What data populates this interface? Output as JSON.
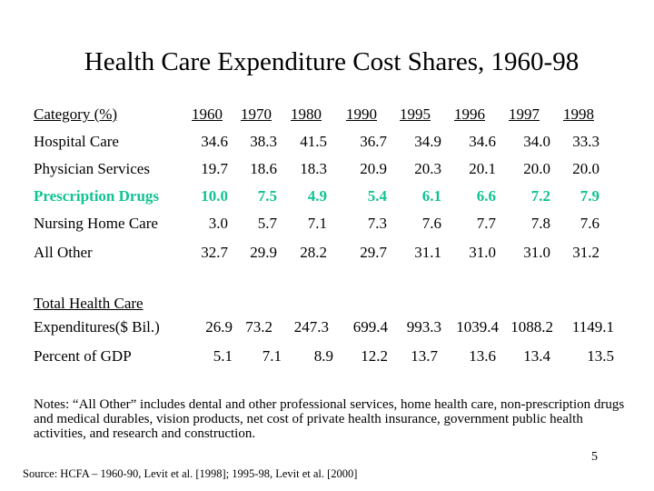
{
  "title": "Health Care Expenditure Cost Shares, 1960-98",
  "header": {
    "label": "Category  (%)",
    "years": [
      "1960",
      "1970",
      "1980",
      "1990",
      "1995",
      "1996",
      "1997",
      "1998"
    ]
  },
  "rows": [
    {
      "label": "Hospital Care",
      "values": [
        "34.6",
        "38.3",
        "41.5",
        "36.7",
        "34.9",
        "34.6",
        "34.0",
        "33.3"
      ]
    },
    {
      "label": "Physician Services",
      "values": [
        "19.7",
        "18.6",
        "18.3",
        "20.9",
        "20.3",
        "20.1",
        "20.0",
        "20.0"
      ]
    },
    {
      "label": "Prescription Drugs",
      "values": [
        "10.0",
        "7.5",
        "4.9",
        "5.4",
        "6.1",
        "6.6",
        "7.2",
        "7.9"
      ],
      "highlight": true
    },
    {
      "label": "Nursing Home Care",
      "values": [
        "3.0",
        "5.7",
        "7.1",
        "7.3",
        "7.6",
        "7.7",
        "7.8",
        "7.6"
      ]
    },
    {
      "label": "All Other",
      "values": [
        "32.7",
        "29.9",
        "28.2",
        "29.7",
        "31.1",
        "31.0",
        "31.0",
        "31.2"
      ]
    }
  ],
  "totals": {
    "heading": "Total Health Care",
    "expenditures": {
      "label": "Expenditures($ Bil.)",
      "values": [
        "26.9",
        "73.2",
        "247.3",
        "699.4",
        "993.3",
        "1039.4",
        "1088.2",
        "1149.1"
      ]
    },
    "gdp": {
      "label": "Percent of GDP",
      "values": [
        "5.1",
        "7.1",
        "8.9",
        "12.2",
        "13.7",
        "13.6",
        "13.4",
        "13.5"
      ]
    }
  },
  "notes": "Notes: “All Other” includes dental and other professional services, home health care, non-prescription drugs and medical durables, vision products, net cost of private health insurance, government public health activities, and research and construction.",
  "page_number": "5",
  "source": "Source: HCFA – 1960-90, Levit et al. [1998]; 1995-98, Levit et al. [2000]",
  "colors": {
    "highlight": "#12c394"
  }
}
